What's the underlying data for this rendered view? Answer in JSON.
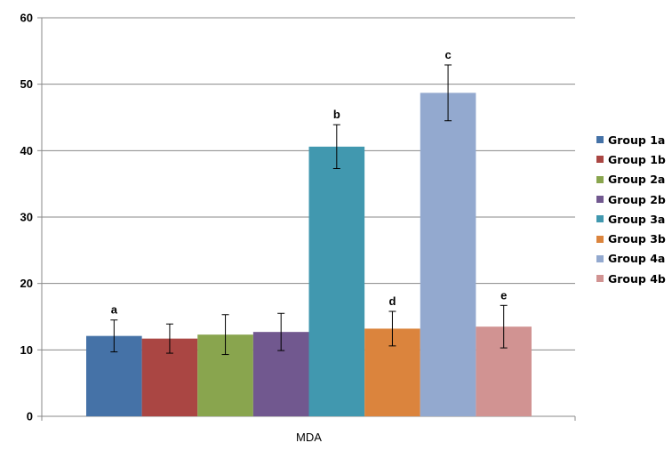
{
  "chart_data": {
    "type": "bar",
    "categories": [
      "MDA"
    ],
    "series": [
      {
        "name": "Group 1a",
        "value": 12.1,
        "error": 2.4,
        "label": "a",
        "color": "#4572a7"
      },
      {
        "name": "Group 1b",
        "value": 11.7,
        "error": 2.2,
        "label": "",
        "color": "#aa4643"
      },
      {
        "name": "Group 2a",
        "value": 12.3,
        "error": 3.0,
        "label": "",
        "color": "#89a54e"
      },
      {
        "name": "Group 2b",
        "value": 12.7,
        "error": 2.8,
        "label": "",
        "color": "#71588f"
      },
      {
        "name": "Group 3a",
        "value": 40.6,
        "error": 3.3,
        "label": "b",
        "color": "#4198af"
      },
      {
        "name": "Group 3b",
        "value": 13.2,
        "error": 2.6,
        "label": "d",
        "color": "#db843d"
      },
      {
        "name": "Group 4a",
        "value": 48.7,
        "error": 4.2,
        "label": "c",
        "color": "#93a9cf"
      },
      {
        "name": "Group 4b",
        "value": 13.5,
        "error": 3.2,
        "label": "e",
        "color": "#d19392"
      }
    ],
    "ylim": [
      0,
      60
    ],
    "yticks": [
      0,
      10,
      20,
      30,
      40,
      50,
      60
    ],
    "title": "",
    "xlabel": "",
    "ylabel": "",
    "grid": true,
    "legend_position": "right"
  }
}
